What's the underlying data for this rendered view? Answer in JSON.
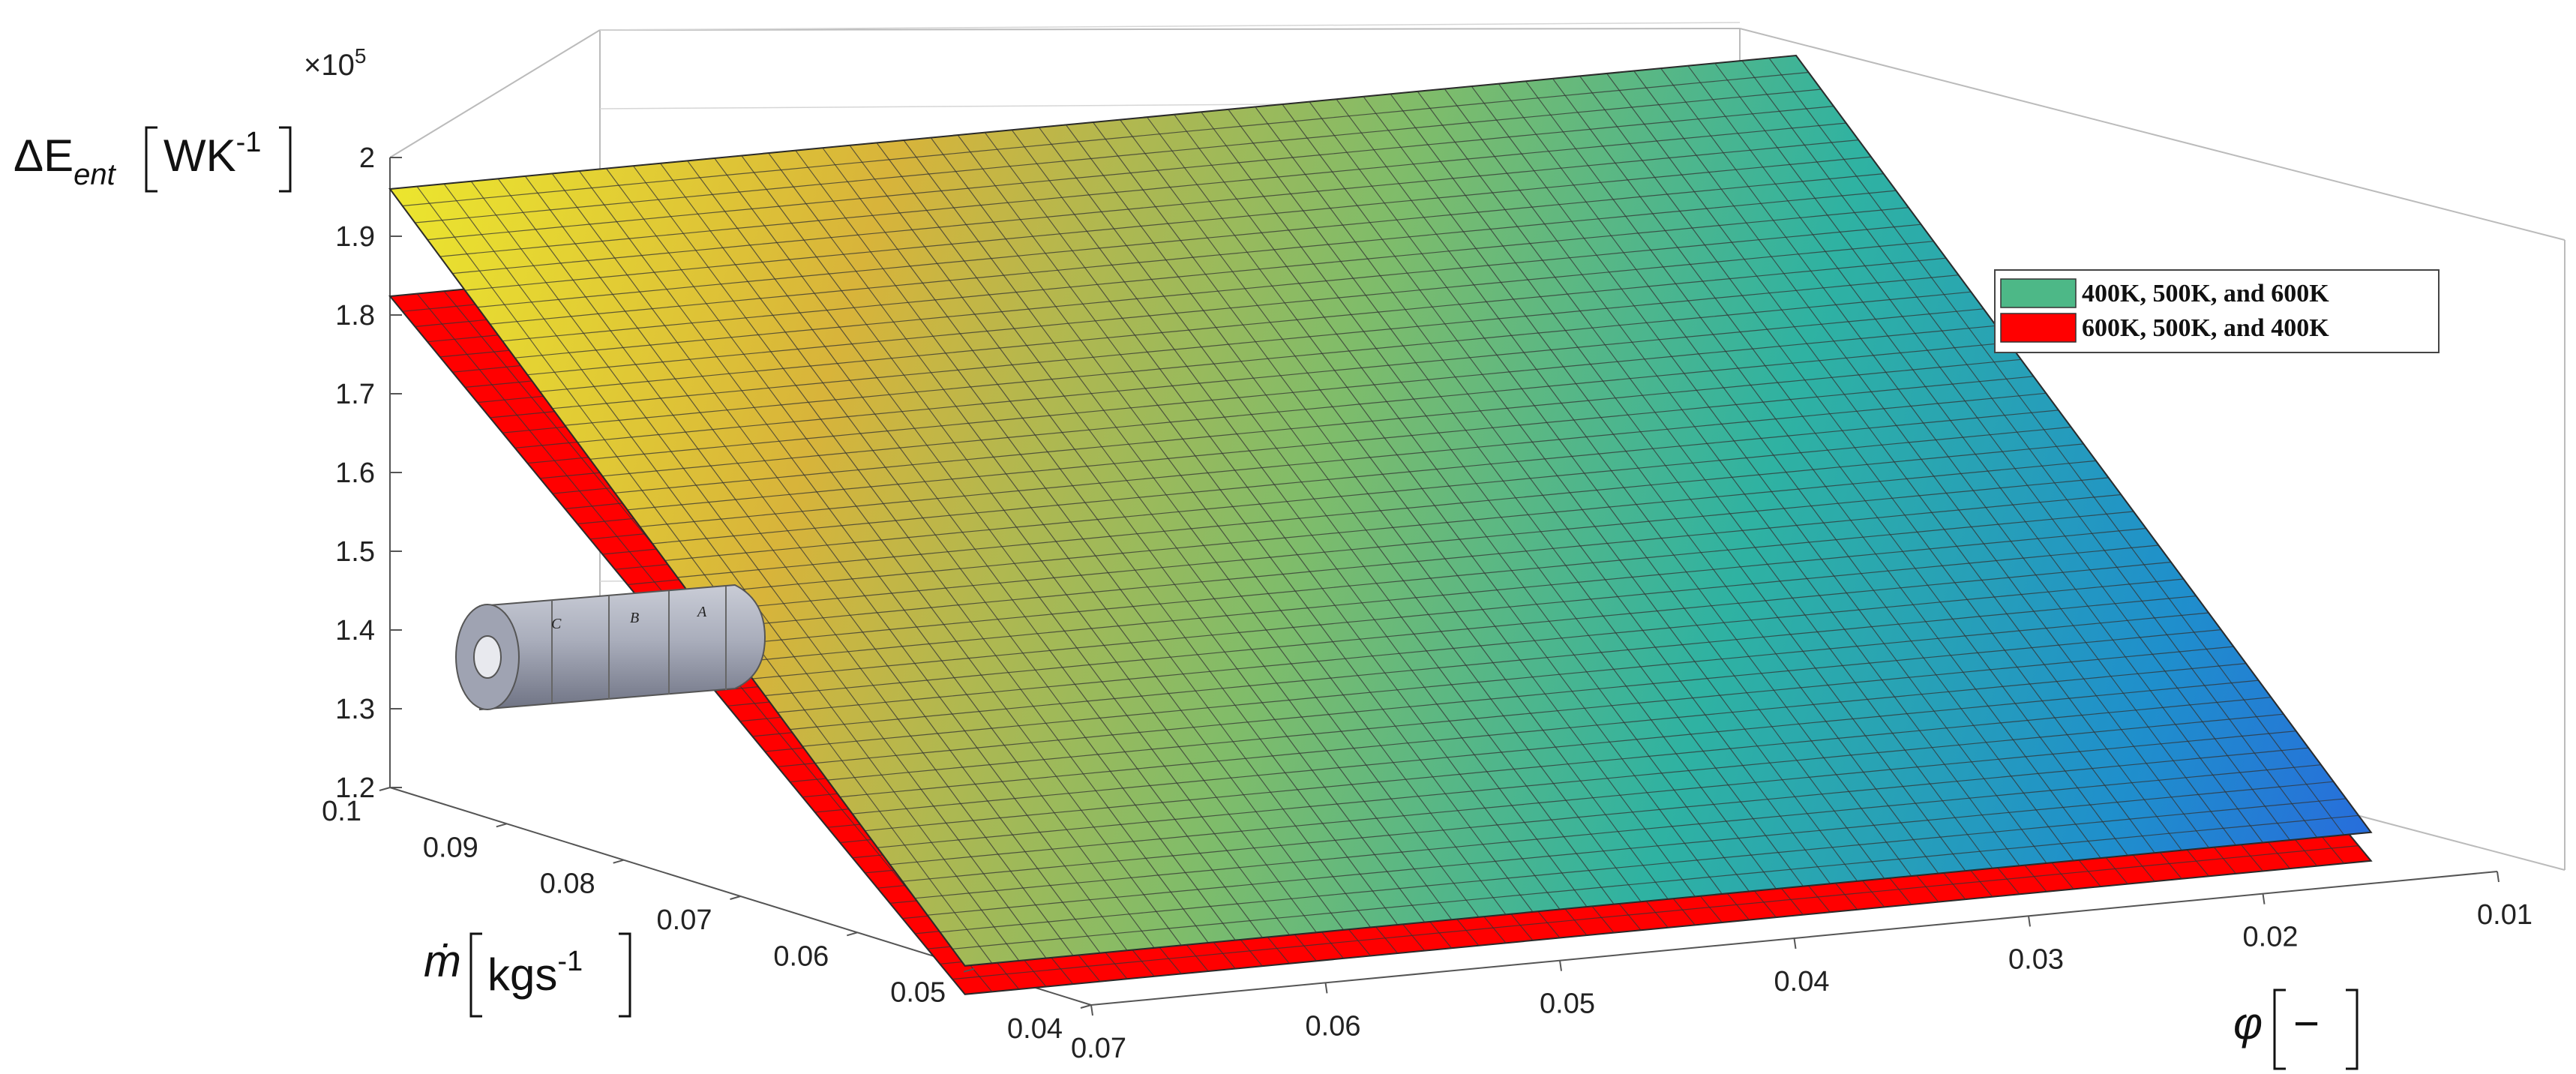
{
  "chart_data": {
    "type": "surface3d",
    "z_multiplier": "×10",
    "z_multiplier_exp": "5",
    "axes": {
      "z": {
        "label_main": "ΔE",
        "label_sub": "ent",
        "label_unit": "WK",
        "label_unit_exp": "-1",
        "range": [
          1.2,
          2.0
        ],
        "ticks": [
          "1.2",
          "1.3",
          "1.4",
          "1.5",
          "1.6",
          "1.7",
          "1.8",
          "1.9",
          "2"
        ]
      },
      "mdot": {
        "label_main": "ṁ",
        "label_unit": "kgs",
        "label_unit_exp": "-1",
        "range": [
          0.04,
          0.1
        ],
        "ticks": [
          "0.1",
          "0.09",
          "0.08",
          "0.07",
          "0.06",
          "0.05",
          "0.04"
        ]
      },
      "phi": {
        "label_main": "φ",
        "label_unit": "−",
        "range": [
          0.01,
          0.07
        ],
        "ticks": [
          "0.07",
          "0.06",
          "0.05",
          "0.04",
          "0.03",
          "0.02",
          "0.01"
        ]
      }
    },
    "series": [
      {
        "name": "400K, 500K, and 600K",
        "color_map": "parula",
        "corners": {
          "mdot0.1_phi0.07": 1.96,
          "mdot0.1_phi0.01": 1.96,
          "mdot0.04_phi0.07": 1.2,
          "mdot0.04_phi0.01": 1.2
        }
      },
      {
        "name": "600K, 500K, and 400K",
        "color": "#ff0000",
        "corners": {
          "mdot0.1_phi0.07": 1.86,
          "mdot0.1_phi0.01": 1.86,
          "mdot0.04_phi0.07": 1.2,
          "mdot0.04_phi0.01": 1.2
        }
      }
    ],
    "grid": true,
    "legend_position": "top-right"
  },
  "inset": {
    "section_labels": [
      "C",
      "B",
      "A"
    ]
  }
}
